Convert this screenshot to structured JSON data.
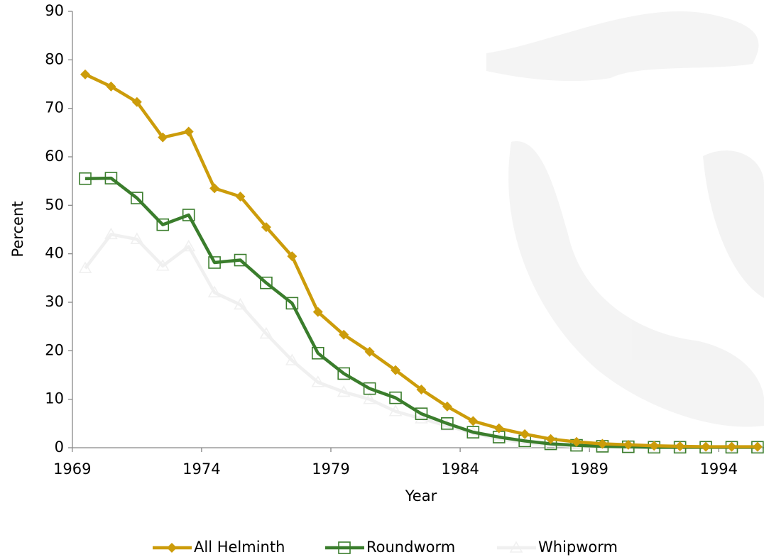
{
  "chart_data": {
    "type": "line",
    "x_label": "Year",
    "y_label": "Percent",
    "categories": [
      "1969",
      null,
      null,
      null,
      null,
      "1974",
      null,
      null,
      null,
      null,
      "1979",
      null,
      null,
      null,
      null,
      "1984",
      null,
      null,
      null,
      null,
      "1989",
      null,
      null,
      null,
      null,
      "1994",
      null
    ],
    "series": [
      {
        "name": "All Helminth",
        "color": "#cc9c0a",
        "marker": "diamond",
        "values": [
          77,
          74.5,
          71.3,
          64,
          65.2,
          53.5,
          51.8,
          45.5,
          39.5,
          28,
          23.3,
          19.8,
          16,
          12,
          8.5,
          5.5,
          4,
          2.8,
          1.8,
          1.2,
          0.8,
          0.6,
          0.4,
          0.3,
          0.2,
          0.2,
          0.2
        ]
      },
      {
        "name": "Roundworm",
        "color": "#3a7d2c",
        "marker": "square",
        "values": [
          55.5,
          55.6,
          51.5,
          46,
          48,
          38.2,
          38.7,
          34,
          29.8,
          19.5,
          15.3,
          12.2,
          10.3,
          7,
          5,
          3.2,
          2.2,
          1.4,
          0.8,
          0.5,
          0.3,
          0.2,
          0.1,
          0.1,
          0.1,
          0.1,
          0.1
        ]
      },
      {
        "name": "Whipworm",
        "color": "#f0f0f0",
        "marker": "triangle",
        "values": [
          37,
          44,
          43,
          37.5,
          41.5,
          32,
          29.5,
          23.5,
          18,
          13.5,
          11.5,
          10,
          7.5,
          6,
          4.5,
          3,
          1.8,
          1,
          0.5,
          0.3,
          0.2,
          0.1,
          0.1,
          0.1,
          0.1,
          0.1,
          0.1
        ]
      }
    ],
    "ylim": [
      0,
      90
    ],
    "yticks": [
      0,
      10,
      20,
      30,
      40,
      50,
      60,
      70,
      80,
      90
    ],
    "legend": "bottom"
  }
}
